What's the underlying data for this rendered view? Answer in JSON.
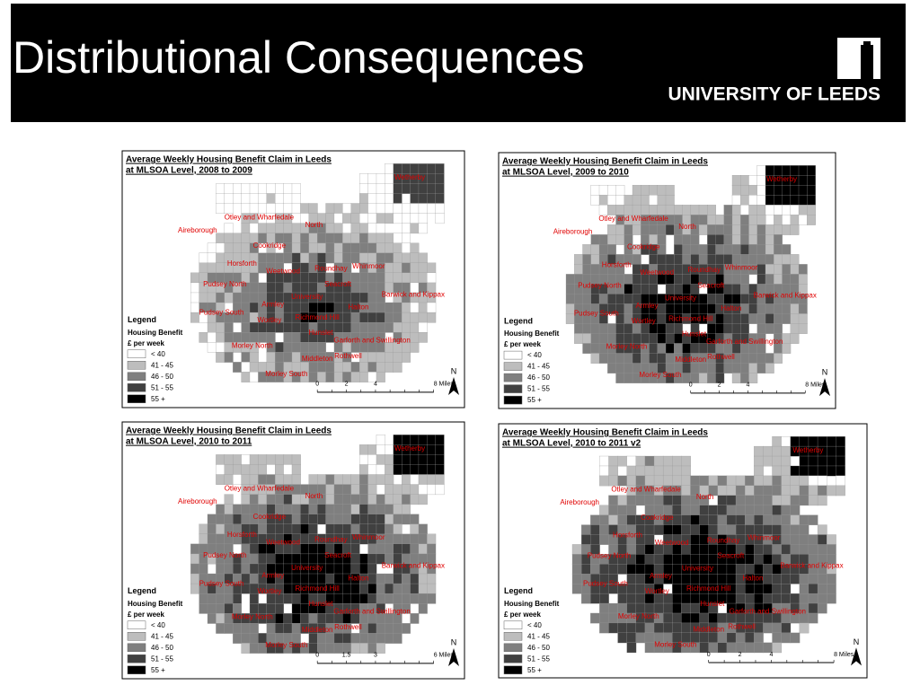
{
  "header": {
    "title": "Distributional Consequences",
    "logo_text": "UNIVERSITY OF LEEDS"
  },
  "maps": [
    {
      "title": [
        "Average Weekly Housing Benefit Claim in Leeds",
        "at MLSOA Level, 2008 to 2009"
      ],
      "places": [
        "Wetherby",
        "Otley and Wharfedale",
        "North",
        "Aireborough",
        "Cookridge",
        "Horsforth",
        "Weetwood",
        "Roundhay",
        "Whinmoor",
        "Pudsey North",
        "Seacroft",
        "University",
        "Barwick and Kippax",
        "Pudsey South",
        "Armley",
        "Halton",
        "Wortley",
        "Richmond Hill",
        "Hunslet",
        "Morley North",
        "Garforth and Swillington",
        "Middleton",
        "Rothwell",
        "Morley South"
      ],
      "legend": {
        "title": "Legend",
        "subtitle": [
          "Housing Benefit",
          "£ per week"
        ],
        "classes": [
          "< 40",
          "41 - 45",
          "46 - 50",
          "51 - 55",
          "55 +"
        ]
      },
      "scale": [
        "0",
        "2",
        "4",
        "8 Miles"
      ],
      "north": "N"
    },
    {
      "title": [
        "Average Weekly Housing Benefit Claim in Leeds",
        "at MLSOA Level, 2009 to 2010"
      ],
      "places": [
        "Wetherby",
        "Otley and Wharfedale",
        "North",
        "Aireborough",
        "Cookridge",
        "Horsforth",
        "Weetwood",
        "Roundhay",
        "Whinmoor",
        "Pudsey North",
        "Seacroft",
        "University",
        "Barwick and Kippax",
        "Pudsey South",
        "Armley",
        "Halton",
        "Wortley",
        "Richmond Hill",
        "Hunslet",
        "Morley North",
        "Garforth and Swillington",
        "Middleton",
        "Rothwell",
        "Morley South"
      ],
      "legend": {
        "title": "Legend",
        "subtitle": [
          "Housing Benefit",
          "£ per week"
        ],
        "classes": [
          "< 40",
          "41 - 45",
          "46 - 50",
          "51 - 55",
          "55 +"
        ]
      },
      "scale": [
        "0",
        "2",
        "4",
        "8 Miles"
      ],
      "north": "N"
    },
    {
      "title": [
        "Average Weekly Housing Benefit Claim in Leeds",
        "at MLSOA Level, 2010 to 2011"
      ],
      "places": [
        "Wetherby",
        "Otley and Wharfedale",
        "North",
        "Aireborough",
        "Cookridge",
        "Horsforth",
        "Weetwood",
        "Roundhay",
        "Whinmoor",
        "Pudsey North",
        "Seacroft",
        "University",
        "Barwick and Kippax",
        "Pudsey South",
        "Armley",
        "Halton",
        "Wortley",
        "Richmond Hill",
        "Hunslet",
        "Morley North",
        "Garforth and Swillington",
        "Middleton",
        "Rothwell",
        "Morley South"
      ],
      "legend": {
        "title": "Legend",
        "subtitle": [
          "Housing Benefit",
          "£ per week"
        ],
        "classes": [
          "< 40",
          "41 - 45",
          "46 - 50",
          "51 - 55",
          "55 +"
        ]
      },
      "scale": [
        "0",
        "1.5",
        "3",
        "6 Miles"
      ],
      "north": "N"
    },
    {
      "title": [
        "Average Weekly Housing Benefit Claim in Leeds",
        "at MLSOA Level, 2010 to 2011 v2"
      ],
      "places": [
        "Wetherby",
        "Otley and Wharfedale",
        "North",
        "Aireborough",
        "Cookridge",
        "Horsforth",
        "Weetwood",
        "Roundhay",
        "Whinmoor",
        "Pudsey North",
        "Seacroft",
        "University",
        "Barwick and Kippax",
        "Pudsey South",
        "Armley",
        "Halton",
        "Wortley",
        "Richmond Hill",
        "Hunslet",
        "Morley North",
        "Garforth and Swillington",
        "Middleton",
        "Rothwell",
        "Morley South"
      ],
      "legend": {
        "title": "Legend",
        "subtitle": [
          "Housing Benefit",
          "£ per week"
        ],
        "classes": [
          "< 40",
          "41 - 45",
          "46 - 50",
          "51 - 55",
          "55 +"
        ]
      },
      "scale": [
        "0",
        "2",
        "4",
        "8 Miles"
      ],
      "north": "N"
    }
  ]
}
